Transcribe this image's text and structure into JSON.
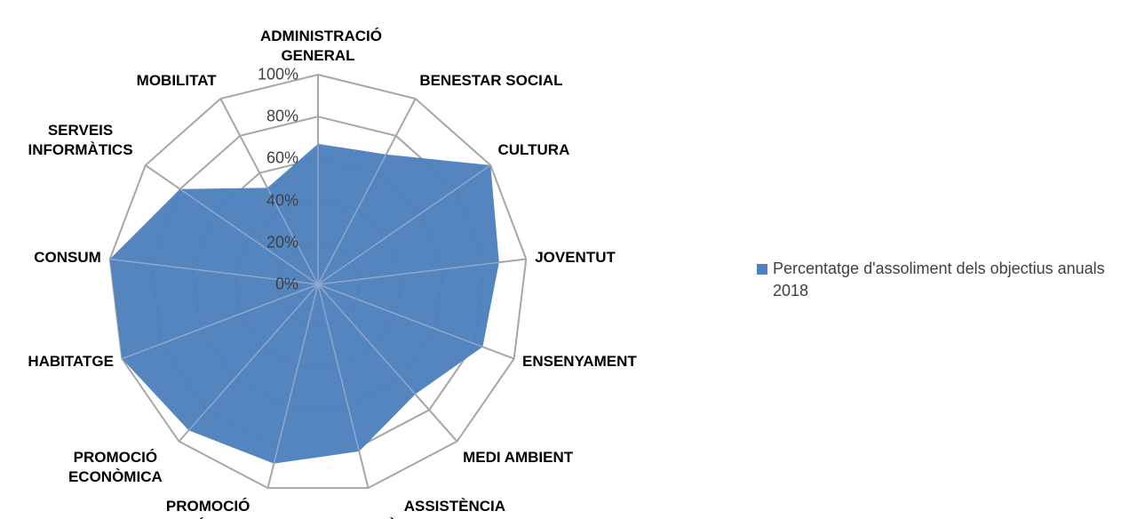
{
  "chart_data": {
    "type": "radar",
    "categories": [
      "ADMINISTRACIÓ GENERAL",
      "BENESTAR SOCIAL",
      "CULTURA",
      "JOVENTUT",
      "ENSENYAMENT",
      "MEDI AMBIENT",
      "ASSISTÈNCIA TÈCNICA MUNICIPAL",
      "PROMOCIÓ TURÍSTICA",
      "PROMOCIÓ ECONÒMICA",
      "HABITATGE",
      "CONSUM",
      "SERVEIS INFORMÀTICS",
      "MOBILITAT"
    ],
    "series": [
      {
        "name": "Percentatge d'assoliment dels objectius anuals 2018",
        "color": "#4f81bd",
        "values": [
          67,
          70,
          100,
          87,
          84,
          70,
          82,
          88,
          93,
          100,
          100,
          80,
          52
        ]
      }
    ],
    "ylim": [
      0,
      100
    ],
    "yticks": [
      {
        "value": 0,
        "label": "0%"
      },
      {
        "value": 20,
        "label": "20%"
      },
      {
        "value": 40,
        "label": "40%"
      },
      {
        "value": 60,
        "label": "60%"
      },
      {
        "value": 80,
        "label": "80%"
      },
      {
        "value": 100,
        "label": "100%"
      }
    ],
    "grid": true,
    "legend": "right"
  }
}
